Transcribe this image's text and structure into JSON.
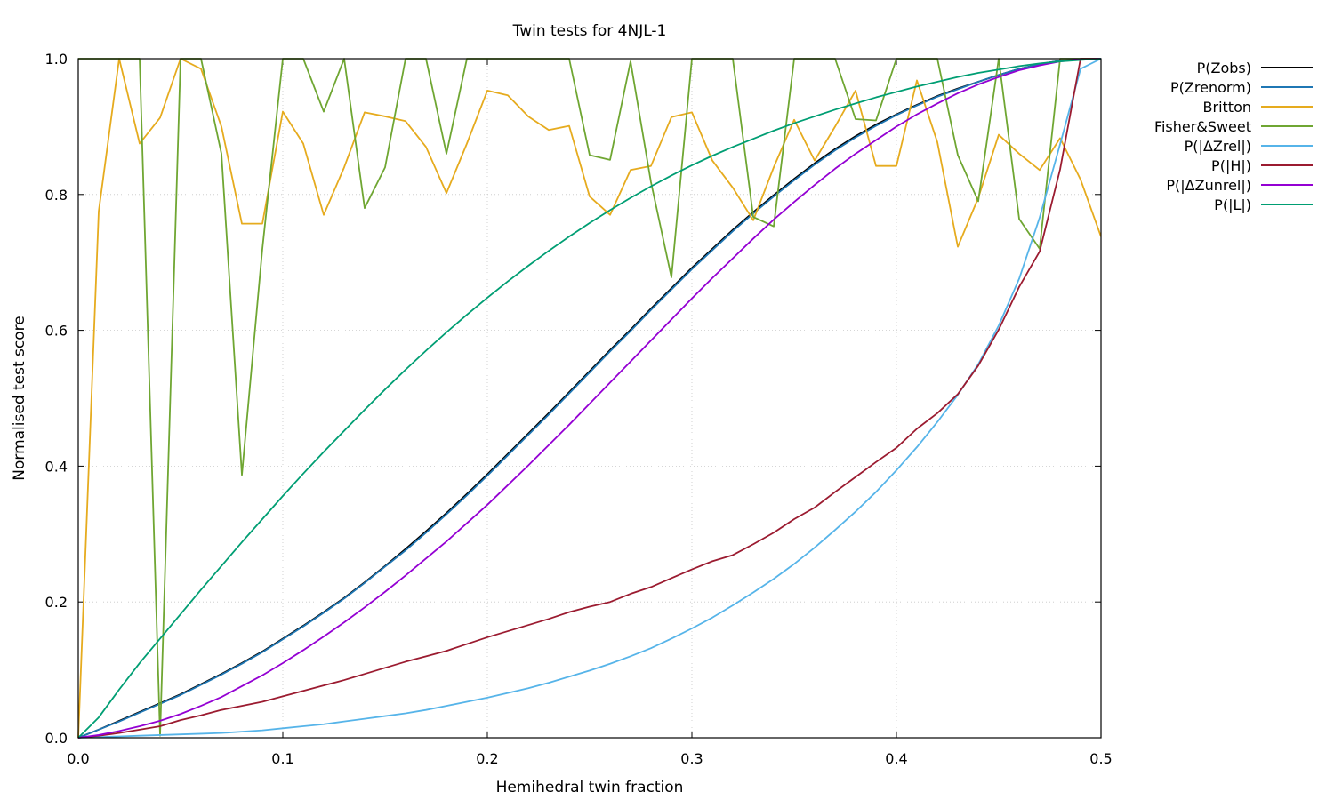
{
  "chart_data": {
    "type": "line",
    "title": "Twin tests for 4NJL-1",
    "xlabel": "Hemihedral twin fraction",
    "ylabel": "Normalised test score",
    "xlim": [
      0,
      0.5
    ],
    "ylim": [
      0,
      1
    ],
    "xticks": [
      "0.0",
      "0.1",
      "0.2",
      "0.3",
      "0.4",
      "0.5"
    ],
    "yticks": [
      "0.0",
      "0.2",
      "0.4",
      "0.6",
      "0.8",
      "1.0"
    ],
    "grid": true,
    "legend_position": "outside-right-top",
    "x": [
      0,
      0.01,
      0.02,
      0.03,
      0.04,
      0.05,
      0.06,
      0.07,
      0.08,
      0.09,
      0.1,
      0.11,
      0.12,
      0.13,
      0.14,
      0.15,
      0.16,
      0.17,
      0.18,
      0.19,
      0.2,
      0.21,
      0.22,
      0.23,
      0.24,
      0.25,
      0.26,
      0.27,
      0.28,
      0.29,
      0.3,
      0.31,
      0.32,
      0.33,
      0.34,
      0.35,
      0.36,
      0.37,
      0.38,
      0.39,
      0.4,
      0.41,
      0.42,
      0.43,
      0.44,
      0.45,
      0.46,
      0.47,
      0.48,
      0.49,
      0.5
    ],
    "series": [
      {
        "name": "P(Zobs)",
        "color": "#000000",
        "values": [
          0,
          0.012,
          0.025,
          0.038,
          0.051,
          0.064,
          0.079,
          0.094,
          0.11,
          0.127,
          0.146,
          0.165,
          0.185,
          0.206,
          0.229,
          0.253,
          0.278,
          0.304,
          0.331,
          0.359,
          0.388,
          0.418,
          0.448,
          0.478,
          0.509,
          0.54,
          0.571,
          0.601,
          0.632,
          0.662,
          0.692,
          0.72,
          0.748,
          0.774,
          0.799,
          0.823,
          0.846,
          0.867,
          0.886,
          0.903,
          0.918,
          0.932,
          0.945,
          0.956,
          0.966,
          0.976,
          0.985,
          0.992,
          0.997,
          0.999,
          1.0
        ]
      },
      {
        "name": "P(Zrenorm)",
        "color": "#1f77b4",
        "values": [
          0,
          0.012,
          0.024,
          0.037,
          0.05,
          0.063,
          0.078,
          0.093,
          0.109,
          0.126,
          0.145,
          0.164,
          0.184,
          0.205,
          0.228,
          0.252,
          0.276,
          0.302,
          0.329,
          0.357,
          0.386,
          0.416,
          0.446,
          0.476,
          0.507,
          0.538,
          0.569,
          0.599,
          0.63,
          0.66,
          0.69,
          0.718,
          0.746,
          0.772,
          0.797,
          0.821,
          0.844,
          0.865,
          0.884,
          0.901,
          0.917,
          0.931,
          0.944,
          0.955,
          0.966,
          0.976,
          0.985,
          0.992,
          0.997,
          0.999,
          1.0
        ]
      },
      {
        "name": "Britton",
        "color": "#e6ab1e",
        "values": [
          0,
          0.775,
          1.0,
          0.875,
          0.913,
          1.0,
          0.985,
          0.9,
          0.757,
          0.757,
          0.922,
          0.875,
          0.77,
          0.84,
          0.921,
          0.915,
          0.908,
          0.87,
          0.802,
          0.875,
          0.953,
          0.946,
          0.915,
          0.895,
          0.901,
          0.797,
          0.77,
          0.836,
          0.842,
          0.914,
          0.921,
          0.85,
          0.81,
          0.762,
          0.84,
          0.91,
          0.85,
          0.9,
          0.953,
          0.842,
          0.842,
          0.968,
          0.877,
          0.723,
          0.795,
          0.888,
          0.86,
          0.836,
          0.883,
          0.822,
          0.738
        ]
      },
      {
        "name": "Fisher&Sweet",
        "color": "#6fa632",
        "values": [
          1.0,
          1.0,
          1.0,
          1.0,
          0.003,
          1.0,
          1.0,
          0.86,
          0.387,
          0.72,
          1.0,
          1.0,
          0.922,
          1.0,
          0.78,
          0.84,
          1.0,
          1.0,
          0.86,
          1.0,
          1.0,
          1.0,
          1.0,
          1.0,
          1.0,
          0.858,
          0.851,
          0.996,
          0.818,
          0.678,
          1.0,
          1.0,
          1.0,
          0.767,
          0.753,
          1.0,
          1.0,
          1.0,
          0.911,
          0.909,
          1.0,
          1.0,
          1.0,
          0.858,
          0.79,
          1.0,
          0.764,
          0.72,
          1.0,
          1.0,
          1.0
        ]
      },
      {
        "name": "P(|ΔZrel|)",
        "color": "#56b4e9",
        "values": [
          0,
          0.001,
          0.002,
          0.003,
          0.004,
          0.005,
          0.006,
          0.007,
          0.009,
          0.011,
          0.014,
          0.017,
          0.02,
          0.024,
          0.028,
          0.032,
          0.036,
          0.041,
          0.047,
          0.053,
          0.059,
          0.066,
          0.073,
          0.081,
          0.09,
          0.099,
          0.109,
          0.12,
          0.132,
          0.146,
          0.161,
          0.177,
          0.195,
          0.214,
          0.234,
          0.256,
          0.28,
          0.306,
          0.333,
          0.362,
          0.394,
          0.428,
          0.465,
          0.505,
          0.55,
          0.607,
          0.676,
          0.766,
          0.874,
          0.985,
          1.0
        ]
      },
      {
        "name": "P(|H|)",
        "color": "#9b1b30",
        "values": [
          0,
          0.003,
          0.007,
          0.012,
          0.017,
          0.026,
          0.033,
          0.041,
          0.047,
          0.053,
          0.061,
          0.069,
          0.077,
          0.085,
          0.094,
          0.103,
          0.112,
          0.12,
          0.128,
          0.138,
          0.148,
          0.157,
          0.166,
          0.175,
          0.185,
          0.193,
          0.2,
          0.212,
          0.222,
          0.235,
          0.248,
          0.26,
          0.269,
          0.285,
          0.302,
          0.322,
          0.339,
          0.362,
          0.384,
          0.406,
          0.427,
          0.455,
          0.478,
          0.506,
          0.548,
          0.601,
          0.664,
          0.716,
          0.837,
          1.0,
          1.0
        ]
      },
      {
        "name": "P(|ΔZunrel|)",
        "color": "#9400d3",
        "values": [
          0,
          0.004,
          0.01,
          0.017,
          0.025,
          0.035,
          0.047,
          0.06,
          0.076,
          0.092,
          0.11,
          0.129,
          0.149,
          0.17,
          0.192,
          0.215,
          0.239,
          0.264,
          0.289,
          0.316,
          0.343,
          0.372,
          0.401,
          0.431,
          0.461,
          0.492,
          0.523,
          0.554,
          0.585,
          0.616,
          0.647,
          0.677,
          0.706,
          0.735,
          0.763,
          0.789,
          0.814,
          0.838,
          0.86,
          0.88,
          0.9,
          0.918,
          0.934,
          0.949,
          0.962,
          0.973,
          0.983,
          0.99,
          0.996,
          0.999,
          1.0
        ]
      },
      {
        "name": "P(|L|)",
        "color": "#009e73",
        "values": [
          0,
          0.03,
          0.071,
          0.11,
          0.146,
          0.182,
          0.218,
          0.253,
          0.288,
          0.322,
          0.356,
          0.389,
          0.421,
          0.452,
          0.483,
          0.513,
          0.542,
          0.57,
          0.597,
          0.623,
          0.648,
          0.672,
          0.695,
          0.717,
          0.738,
          0.758,
          0.777,
          0.795,
          0.812,
          0.828,
          0.843,
          0.857,
          0.87,
          0.882,
          0.894,
          0.905,
          0.915,
          0.925,
          0.934,
          0.943,
          0.951,
          0.959,
          0.966,
          0.973,
          0.979,
          0.984,
          0.989,
          0.993,
          0.996,
          0.998,
          1.0
        ]
      }
    ]
  }
}
